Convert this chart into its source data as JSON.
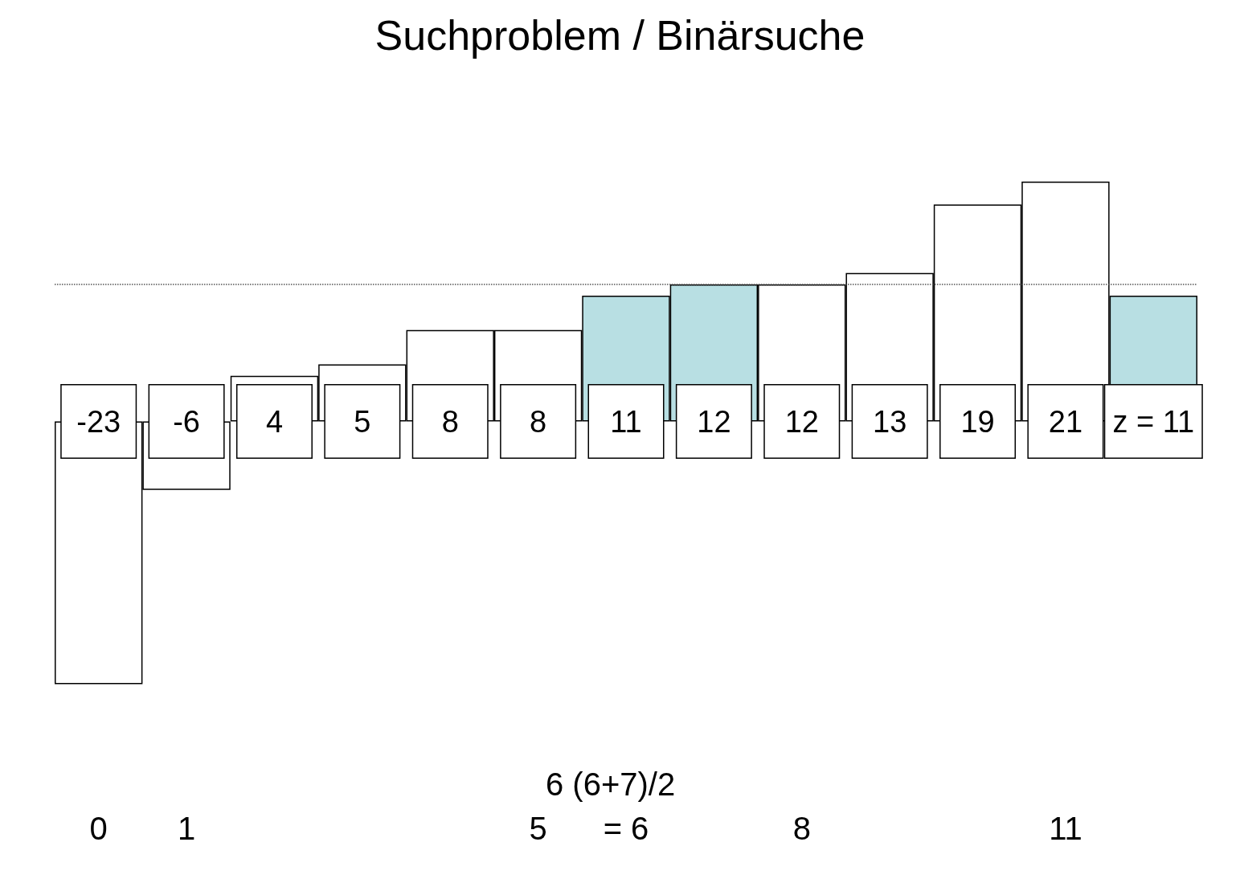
{
  "chart_data": {
    "type": "bar",
    "title": "Suchproblem / Binärsuche",
    "categories": [
      "0",
      "1",
      null,
      null,
      null,
      "5",
      "= 6",
      null,
      "8",
      null,
      null,
      "11",
      null
    ],
    "values": [
      -23,
      -6,
      4,
      5,
      8,
      8,
      11,
      12,
      12,
      13,
      19,
      21,
      11
    ],
    "colors": [
      "#ffffff",
      "#ffffff",
      "#ffffff",
      "#ffffff",
      "#ffffff",
      "#ffffff",
      "#b8dfe3",
      "#b8dfe3",
      "#ffffff",
      "#ffffff",
      "#ffffff",
      "#ffffff",
      "#b8dfe3"
    ],
    "value_labels": [
      "-23",
      "-6",
      "4",
      "5",
      "8",
      "8",
      "11",
      "12",
      "12",
      "13",
      "19",
      "21",
      "z = 11"
    ],
    "annotations": [
      "6 (6+7)/2"
    ],
    "ref_lines": [
      {
        "axis": "y",
        "value": 12,
        "color": "#555555",
        "line_style": "dotted"
      }
    ],
    "grid": false
  }
}
